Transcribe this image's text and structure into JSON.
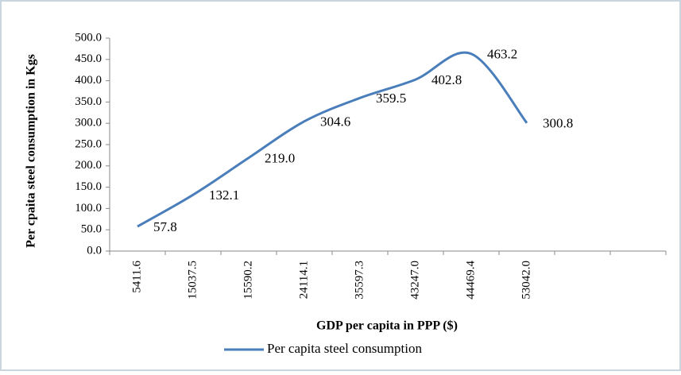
{
  "chart_data": {
    "type": "line",
    "x_label": "GDP per capita in PPP ($)",
    "y_label": "Per cpaita steel consumption in Kgs",
    "categories": [
      "5411.6",
      "15037.5",
      "15590.2",
      "24114.1",
      "35597.3",
      "43247.0",
      "44469.4",
      "53042.0",
      null,
      null
    ],
    "series": [
      {
        "name": "Per capita steel consumption",
        "color": "#4a7ebb",
        "values": [
          57.8,
          132.1,
          219.0,
          304.6,
          359.5,
          402.8,
          463.2,
          300.8,
          null,
          null
        ],
        "value_labels": [
          "57.8",
          "132.1",
          "219.0",
          "304.6",
          "359.5",
          "402.8",
          "463.2",
          "300.8",
          null,
          null
        ]
      }
    ],
    "ylim": [
      0,
      500
    ],
    "yticks": [
      {
        "value": 0,
        "label": "0.0"
      },
      {
        "value": 50,
        "label": "50.0"
      },
      {
        "value": 100,
        "label": "100.0"
      },
      {
        "value": 150,
        "label": "150.0"
      },
      {
        "value": 200,
        "label": "200.0"
      },
      {
        "value": 250,
        "label": "250.0"
      },
      {
        "value": 300,
        "label": "300.0"
      },
      {
        "value": 350,
        "label": "350.0"
      },
      {
        "value": 400,
        "label": "400.0"
      },
      {
        "value": 450,
        "label": "450.0"
      },
      {
        "value": 500,
        "label": "500.0"
      }
    ],
    "legend": "bottom"
  }
}
